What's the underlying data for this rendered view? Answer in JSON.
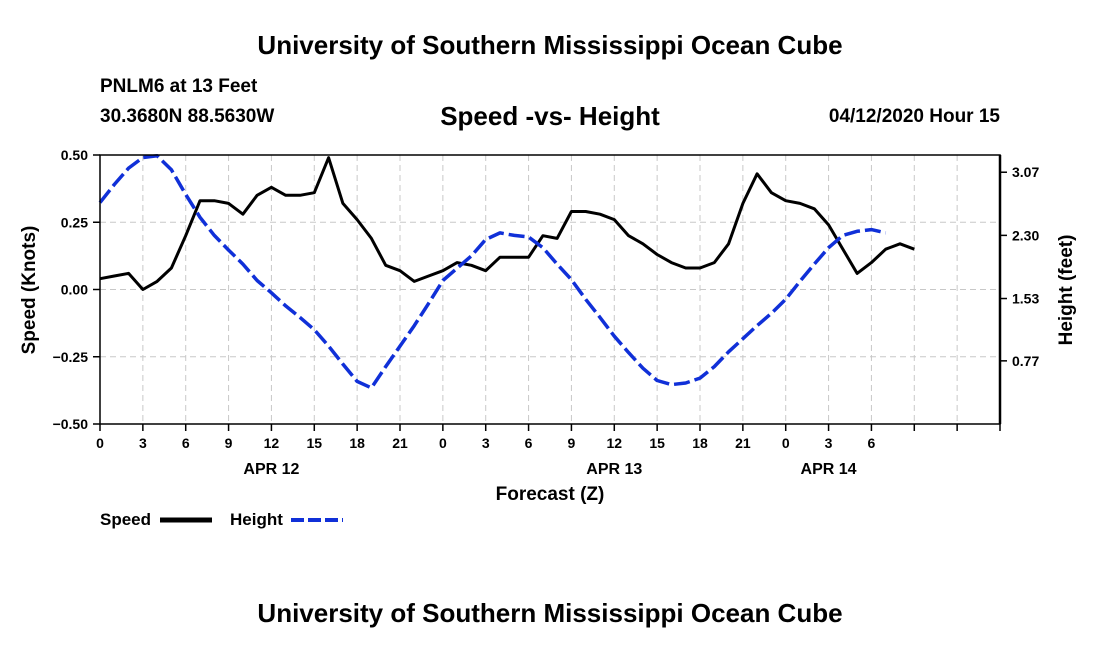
{
  "header": {
    "title": "University of Southern Mississippi Ocean Cube",
    "station": "PNLM6 at 13 Feet",
    "coordinates": "30.3680N 88.5630W",
    "subtitle": "Speed -vs- Height",
    "datetime": "04/12/2020 Hour 15"
  },
  "footer": {
    "title": "University of Southern Mississippi Ocean Cube"
  },
  "chart_data": {
    "type": "line",
    "title": "Speed -vs- Height",
    "xlabel": "Forecast (Z)",
    "ylabel": "Speed (Knots)",
    "y2label": "Height (feet)",
    "x_range": [
      0,
      63
    ],
    "ylim": [
      -0.5,
      0.5
    ],
    "y2lim": [
      0.0,
      3.28
    ],
    "x_ticks": [
      0,
      3,
      6,
      9,
      12,
      15,
      18,
      21,
      24,
      27,
      30,
      33,
      36,
      39,
      42,
      45,
      48,
      51,
      54,
      57,
      60,
      63
    ],
    "x_tick_labels": [
      "0",
      "3",
      "6",
      "9",
      "12",
      "15",
      "18",
      "21",
      "0",
      "3",
      "6",
      "9",
      "12",
      "15",
      "18",
      "21",
      "0",
      "3",
      "6"
    ],
    "x_tick_label_hours": [
      0,
      3,
      6,
      9,
      12,
      15,
      18,
      21,
      24,
      27,
      30,
      33,
      36,
      39,
      42,
      45,
      48,
      51,
      54
    ],
    "date_labels": [
      {
        "label": "APR 12",
        "hour": 12
      },
      {
        "label": "APR 13",
        "hour": 36
      },
      {
        "label": "APR 14",
        "hour": 51
      }
    ],
    "y_ticks": [
      0.5,
      0.25,
      0.0,
      -0.25,
      -0.5
    ],
    "y_tick_labels": [
      "0.50",
      "0.25",
      "0.00",
      "−0.25",
      "−0.50"
    ],
    "y2_ticks": [
      3.07,
      2.3,
      1.53,
      0.77
    ],
    "y2_tick_labels": [
      "3.07",
      "2.30",
      "1.53",
      "0.77"
    ],
    "grid": true,
    "legend_position": "bottom-left",
    "series": [
      {
        "name": "Speed",
        "axis": "left",
        "color": "#000000",
        "style": "solid",
        "points": [
          [
            0,
            0.04
          ],
          [
            1,
            0.05
          ],
          [
            2,
            0.06
          ],
          [
            3,
            0.0
          ],
          [
            4,
            0.03
          ],
          [
            5,
            0.08
          ],
          [
            6,
            0.2
          ],
          [
            7,
            0.33
          ],
          [
            8,
            0.33
          ],
          [
            9,
            0.32
          ],
          [
            10,
            0.28
          ],
          [
            11,
            0.35
          ],
          [
            12,
            0.38
          ],
          [
            13,
            0.35
          ],
          [
            14,
            0.35
          ],
          [
            15,
            0.36
          ],
          [
            16,
            0.49
          ],
          [
            17,
            0.32
          ],
          [
            18,
            0.26
          ],
          [
            19,
            0.19
          ],
          [
            20,
            0.09
          ],
          [
            21,
            0.07
          ],
          [
            22,
            0.03
          ],
          [
            23,
            0.05
          ],
          [
            24,
            0.07
          ],
          [
            25,
            0.1
          ],
          [
            26,
            0.09
          ],
          [
            27,
            0.07
          ],
          [
            28,
            0.12
          ],
          [
            29,
            0.12
          ],
          [
            30,
            0.12
          ],
          [
            31,
            0.2
          ],
          [
            32,
            0.19
          ],
          [
            33,
            0.29
          ],
          [
            34,
            0.29
          ],
          [
            35,
            0.28
          ],
          [
            36,
            0.26
          ],
          [
            37,
            0.2
          ],
          [
            38,
            0.17
          ],
          [
            39,
            0.13
          ],
          [
            40,
            0.1
          ],
          [
            41,
            0.08
          ],
          [
            42,
            0.08
          ],
          [
            43,
            0.1
          ],
          [
            44,
            0.17
          ],
          [
            45,
            0.32
          ],
          [
            46,
            0.43
          ],
          [
            47,
            0.36
          ],
          [
            48,
            0.33
          ],
          [
            49,
            0.32
          ],
          [
            50,
            0.3
          ],
          [
            51,
            0.24
          ],
          [
            52,
            0.15
          ],
          [
            53,
            0.06
          ],
          [
            54,
            0.1
          ],
          [
            55,
            0.15
          ],
          [
            56,
            0.17
          ],
          [
            57,
            0.15
          ]
        ]
      },
      {
        "name": "Height",
        "axis": "right",
        "color": "#1030d8",
        "style": "dashed",
        "points": [
          [
            0,
            2.7
          ],
          [
            1,
            2.92
          ],
          [
            2,
            3.12
          ],
          [
            3,
            3.25
          ],
          [
            4,
            3.27
          ],
          [
            5,
            3.1
          ],
          [
            6,
            2.8
          ],
          [
            7,
            2.52
          ],
          [
            8,
            2.3
          ],
          [
            9,
            2.12
          ],
          [
            10,
            1.95
          ],
          [
            11,
            1.75
          ],
          [
            12,
            1.6
          ],
          [
            13,
            1.44
          ],
          [
            14,
            1.3
          ],
          [
            15,
            1.15
          ],
          [
            16,
            0.95
          ],
          [
            17,
            0.73
          ],
          [
            18,
            0.52
          ],
          [
            19,
            0.44
          ],
          [
            20,
            0.7
          ],
          [
            21,
            0.95
          ],
          [
            22,
            1.2
          ],
          [
            23,
            1.47
          ],
          [
            24,
            1.75
          ],
          [
            25,
            1.9
          ],
          [
            26,
            2.05
          ],
          [
            27,
            2.25
          ],
          [
            28,
            2.33
          ],
          [
            29,
            2.3
          ],
          [
            30,
            2.28
          ],
          [
            31,
            2.15
          ],
          [
            32,
            1.95
          ],
          [
            33,
            1.76
          ],
          [
            34,
            1.52
          ],
          [
            35,
            1.3
          ],
          [
            36,
            1.07
          ],
          [
            37,
            0.87
          ],
          [
            38,
            0.68
          ],
          [
            39,
            0.53
          ],
          [
            40,
            0.48
          ],
          [
            41,
            0.5
          ],
          [
            42,
            0.56
          ],
          [
            43,
            0.7
          ],
          [
            44,
            0.88
          ],
          [
            45,
            1.04
          ],
          [
            46,
            1.2
          ],
          [
            47,
            1.35
          ],
          [
            48,
            1.52
          ],
          [
            49,
            1.74
          ],
          [
            50,
            1.95
          ],
          [
            51,
            2.15
          ],
          [
            52,
            2.3
          ],
          [
            53,
            2.35
          ],
          [
            54,
            2.37
          ],
          [
            55,
            2.33
          ]
        ]
      }
    ]
  }
}
